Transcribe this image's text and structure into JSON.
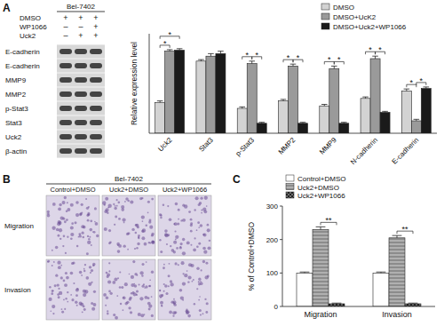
{
  "figure": {
    "panel_labels": [
      "A",
      "B",
      "C"
    ]
  },
  "blot": {
    "cell_line": "Bel-7402",
    "treatments": [
      {
        "name": "DMSO",
        "signs": [
          "+",
          "+",
          "+"
        ]
      },
      {
        "name": "WP1066",
        "signs": [
          "–",
          "–",
          "+"
        ]
      },
      {
        "name": "Uck2",
        "signs": [
          "–",
          "+",
          "+"
        ]
      }
    ],
    "proteins": [
      "E-cadherin",
      "E-cadherin",
      "MMP9",
      "MMP2",
      "p-Stat3",
      "Stat3",
      "Uck2",
      "β-actin"
    ]
  },
  "micrographs": {
    "cell_line": "Bel-7402",
    "columns": [
      "Control+DMSO",
      "Uck2+DMSO",
      "Uck2+WP1066"
    ],
    "rows": [
      "Migration",
      "Invasion"
    ]
  },
  "chart_data": [
    {
      "type": "bar",
      "ylabel": "Relative expression level",
      "categories": [
        "Uck2",
        "Stat3",
        "p-Stat3",
        "MMP2",
        "MMP9",
        "N-cadherin",
        "E-cadherin"
      ],
      "series": [
        {
          "name": "DMSO",
          "color": "#d3d3d3",
          "values": [
            0.62,
            1.45,
            0.5,
            0.65,
            0.55,
            0.7,
            0.85
          ],
          "errors": [
            0.03,
            0.03,
            0.03,
            0.03,
            0.03,
            0.03,
            0.04
          ]
        },
        {
          "name": "DMSO+UcK2",
          "color": "#9a9a9a",
          "values": [
            1.65,
            1.55,
            1.4,
            1.35,
            1.3,
            1.5,
            0.25
          ],
          "errors": [
            0.03,
            0.05,
            0.05,
            0.04,
            0.05,
            0.05,
            0.03
          ]
        },
        {
          "name": "DMSO+Uck2+WP1066",
          "color": "#1a1a1a",
          "values": [
            1.67,
            1.6,
            0.2,
            0.2,
            0.2,
            0.42,
            0.9
          ],
          "errors": [
            0.03,
            0.05,
            0.02,
            0.02,
            0.02,
            0.02,
            0.03
          ]
        }
      ],
      "ylim": [
        0,
        2
      ],
      "tick_labels": "x",
      "legend": "top-right",
      "significance": [
        {
          "category": 0,
          "pair": [
            0,
            1
          ],
          "label": "*"
        },
        {
          "category": 0,
          "pair": [
            0,
            2
          ],
          "label": "*"
        },
        {
          "category": 2,
          "pair": [
            0,
            1
          ],
          "label": "*"
        },
        {
          "category": 2,
          "pair": [
            1,
            2
          ],
          "label": "*"
        },
        {
          "category": 3,
          "pair": [
            0,
            1
          ],
          "label": "*"
        },
        {
          "category": 3,
          "pair": [
            1,
            2
          ],
          "label": "*"
        },
        {
          "category": 4,
          "pair": [
            0,
            1
          ],
          "label": "*"
        },
        {
          "category": 4,
          "pair": [
            1,
            2
          ],
          "label": "*"
        },
        {
          "category": 5,
          "pair": [
            0,
            1
          ],
          "label": "*"
        },
        {
          "category": 5,
          "pair": [
            1,
            2
          ],
          "label": "*"
        },
        {
          "category": 6,
          "pair": [
            0,
            1
          ],
          "label": "*"
        },
        {
          "category": 6,
          "pair": [
            1,
            2
          ],
          "label": "*"
        }
      ]
    },
    {
      "type": "bar",
      "ylabel": "% of Control+DMSO",
      "categories": [
        "Migration",
        "Invasion"
      ],
      "series": [
        {
          "name": "Control+DMSO",
          "color": "#ffffff",
          "values": [
            100,
            100
          ],
          "errors": [
            3,
            3
          ]
        },
        {
          "name": "Uck2+DMSO",
          "color": "#b0b0b0",
          "values": [
            230,
            205
          ],
          "errors": [
            8,
            7
          ]
        },
        {
          "name": "Uck2+WP1066",
          "color": "#6e6e6e",
          "values": [
            8,
            8
          ],
          "errors": [
            2,
            2
          ]
        }
      ],
      "ylim": [
        0,
        300
      ],
      "yticks": [
        0,
        100,
        200,
        300
      ],
      "legend": "top-left",
      "significance": [
        {
          "category": 0,
          "pair": [
            1,
            2
          ],
          "label": "**"
        },
        {
          "category": 1,
          "pair": [
            1,
            2
          ],
          "label": "**"
        }
      ]
    }
  ]
}
